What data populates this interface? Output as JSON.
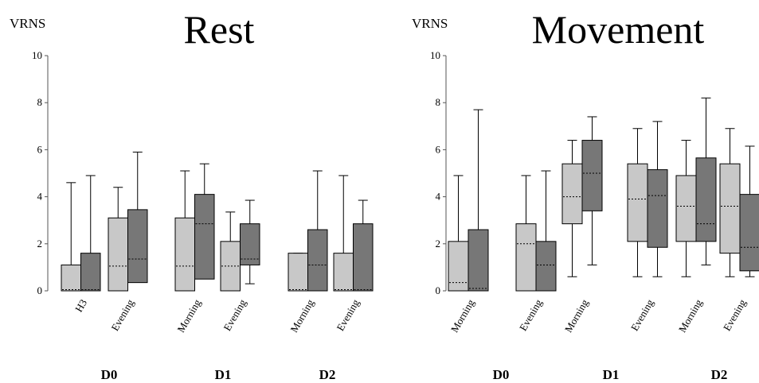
{
  "chart_data": [
    {
      "type": "box",
      "title": "Rest",
      "ylabel": "VRNS",
      "ylim": [
        0,
        10
      ],
      "yticks": [
        "0",
        "2",
        "4",
        "6",
        "8",
        "10"
      ],
      "groups": [
        {
          "day": "D0",
          "items": [
            {
              "label": "H3",
              "boxes": [
                {
                  "whisker_low": 0,
                  "q1": 0,
                  "median": 0.05,
                  "q3": 1.1,
                  "whisker_high": 4.6
                },
                {
                  "whisker_low": 0,
                  "q1": 0,
                  "median": 0.05,
                  "q3": 1.6,
                  "whisker_high": 4.9
                }
              ]
            },
            {
              "label": "Evening",
              "boxes": [
                {
                  "whisker_low": 0,
                  "q1": 0,
                  "median": 1.05,
                  "q3": 3.1,
                  "whisker_high": 4.4
                },
                {
                  "whisker_low": 0.35,
                  "q1": 0.35,
                  "median": 1.35,
                  "q3": 3.45,
                  "whisker_high": 5.9
                }
              ]
            }
          ]
        },
        {
          "day": "D1",
          "items": [
            {
              "label": "Morning",
              "boxes": [
                {
                  "whisker_low": 0,
                  "q1": 0,
                  "median": 1.05,
                  "q3": 3.1,
                  "whisker_high": 5.1
                },
                {
                  "whisker_low": 0.5,
                  "q1": 0.5,
                  "median": 2.85,
                  "q3": 4.1,
                  "whisker_high": 5.4
                }
              ]
            },
            {
              "label": "Evening",
              "boxes": [
                {
                  "whisker_low": 0,
                  "q1": 0,
                  "median": 1.05,
                  "q3": 2.1,
                  "whisker_high": 3.35
                },
                {
                  "whisker_low": 0.3,
                  "q1": 1.1,
                  "median": 1.35,
                  "q3": 2.85,
                  "whisker_high": 3.85
                }
              ]
            }
          ]
        },
        {
          "day": "D2",
          "items": [
            {
              "label": "Morning",
              "boxes": [
                {
                  "whisker_low": 0,
                  "q1": 0,
                  "median": 0.05,
                  "q3": 1.6,
                  "whisker_high": 1.6
                },
                {
                  "whisker_low": 0,
                  "q1": 0,
                  "median": 1.1,
                  "q3": 2.6,
                  "whisker_high": 5.1
                }
              ]
            },
            {
              "label": "Evening",
              "boxes": [
                {
                  "whisker_low": 0,
                  "q1": 0,
                  "median": 0.05,
                  "q3": 1.6,
                  "whisker_high": 4.9
                },
                {
                  "whisker_low": 0,
                  "q1": 0,
                  "median": 0.05,
                  "q3": 2.85,
                  "whisker_high": 3.85
                }
              ]
            }
          ]
        }
      ]
    },
    {
      "type": "box",
      "title": "Movement",
      "ylabel": "VRNS",
      "ylim": [
        0,
        10
      ],
      "yticks": [
        "0",
        "2",
        "4",
        "6",
        "8",
        "10"
      ],
      "groups": [
        {
          "day": "D0",
          "items": [
            {
              "label": "Morning",
              "boxes": [
                {
                  "whisker_low": 0,
                  "q1": 0,
                  "median": 0.35,
                  "q3": 2.1,
                  "whisker_high": 4.9
                },
                {
                  "whisker_low": 0,
                  "q1": 0,
                  "median": 0.1,
                  "q3": 2.6,
                  "whisker_high": 7.7
                }
              ]
            },
            {
              "label": "Evening",
              "boxes": [
                {
                  "whisker_low": 0,
                  "q1": 0,
                  "median": 2.0,
                  "q3": 2.85,
                  "whisker_high": 4.9
                },
                {
                  "whisker_low": 0,
                  "q1": 0,
                  "median": 1.1,
                  "q3": 2.1,
                  "whisker_high": 5.1
                }
              ]
            }
          ]
        },
        {
          "day": "D1",
          "items": [
            {
              "label": "Morning",
              "boxes": [
                {
                  "whisker_low": 0.6,
                  "q1": 2.85,
                  "median": 4.0,
                  "q3": 5.4,
                  "whisker_high": 6.4
                },
                {
                  "whisker_low": 1.1,
                  "q1": 3.4,
                  "median": 5.0,
                  "q3": 6.4,
                  "whisker_high": 7.4
                }
              ]
            },
            {
              "label": "Evening",
              "boxes": [
                {
                  "whisker_low": 0.6,
                  "q1": 2.1,
                  "median": 3.9,
                  "q3": 5.4,
                  "whisker_high": 6.9
                },
                {
                  "whisker_low": 0.6,
                  "q1": 1.85,
                  "median": 4.05,
                  "q3": 5.15,
                  "whisker_high": 7.2
                }
              ]
            }
          ]
        },
        {
          "day": "D2",
          "items": [
            {
              "label": "Morning",
              "boxes": [
                {
                  "whisker_low": 0.6,
                  "q1": 2.1,
                  "median": 3.6,
                  "q3": 4.9,
                  "whisker_high": 6.4
                },
                {
                  "whisker_low": 1.1,
                  "q1": 2.1,
                  "median": 2.85,
                  "q3": 5.65,
                  "whisker_high": 8.2
                }
              ]
            },
            {
              "label": "Evening",
              "boxes": [
                {
                  "whisker_low": 0.6,
                  "q1": 1.6,
                  "median": 3.6,
                  "q3": 5.4,
                  "whisker_high": 6.9
                },
                {
                  "whisker_low": 0.6,
                  "q1": 0.85,
                  "median": 1.85,
                  "q3": 4.1,
                  "whisker_high": 6.15
                }
              ]
            }
          ]
        }
      ]
    }
  ],
  "colors": {
    "light_box": "#c8c8c8",
    "dark_box": "#777777",
    "stroke": "#000000"
  }
}
